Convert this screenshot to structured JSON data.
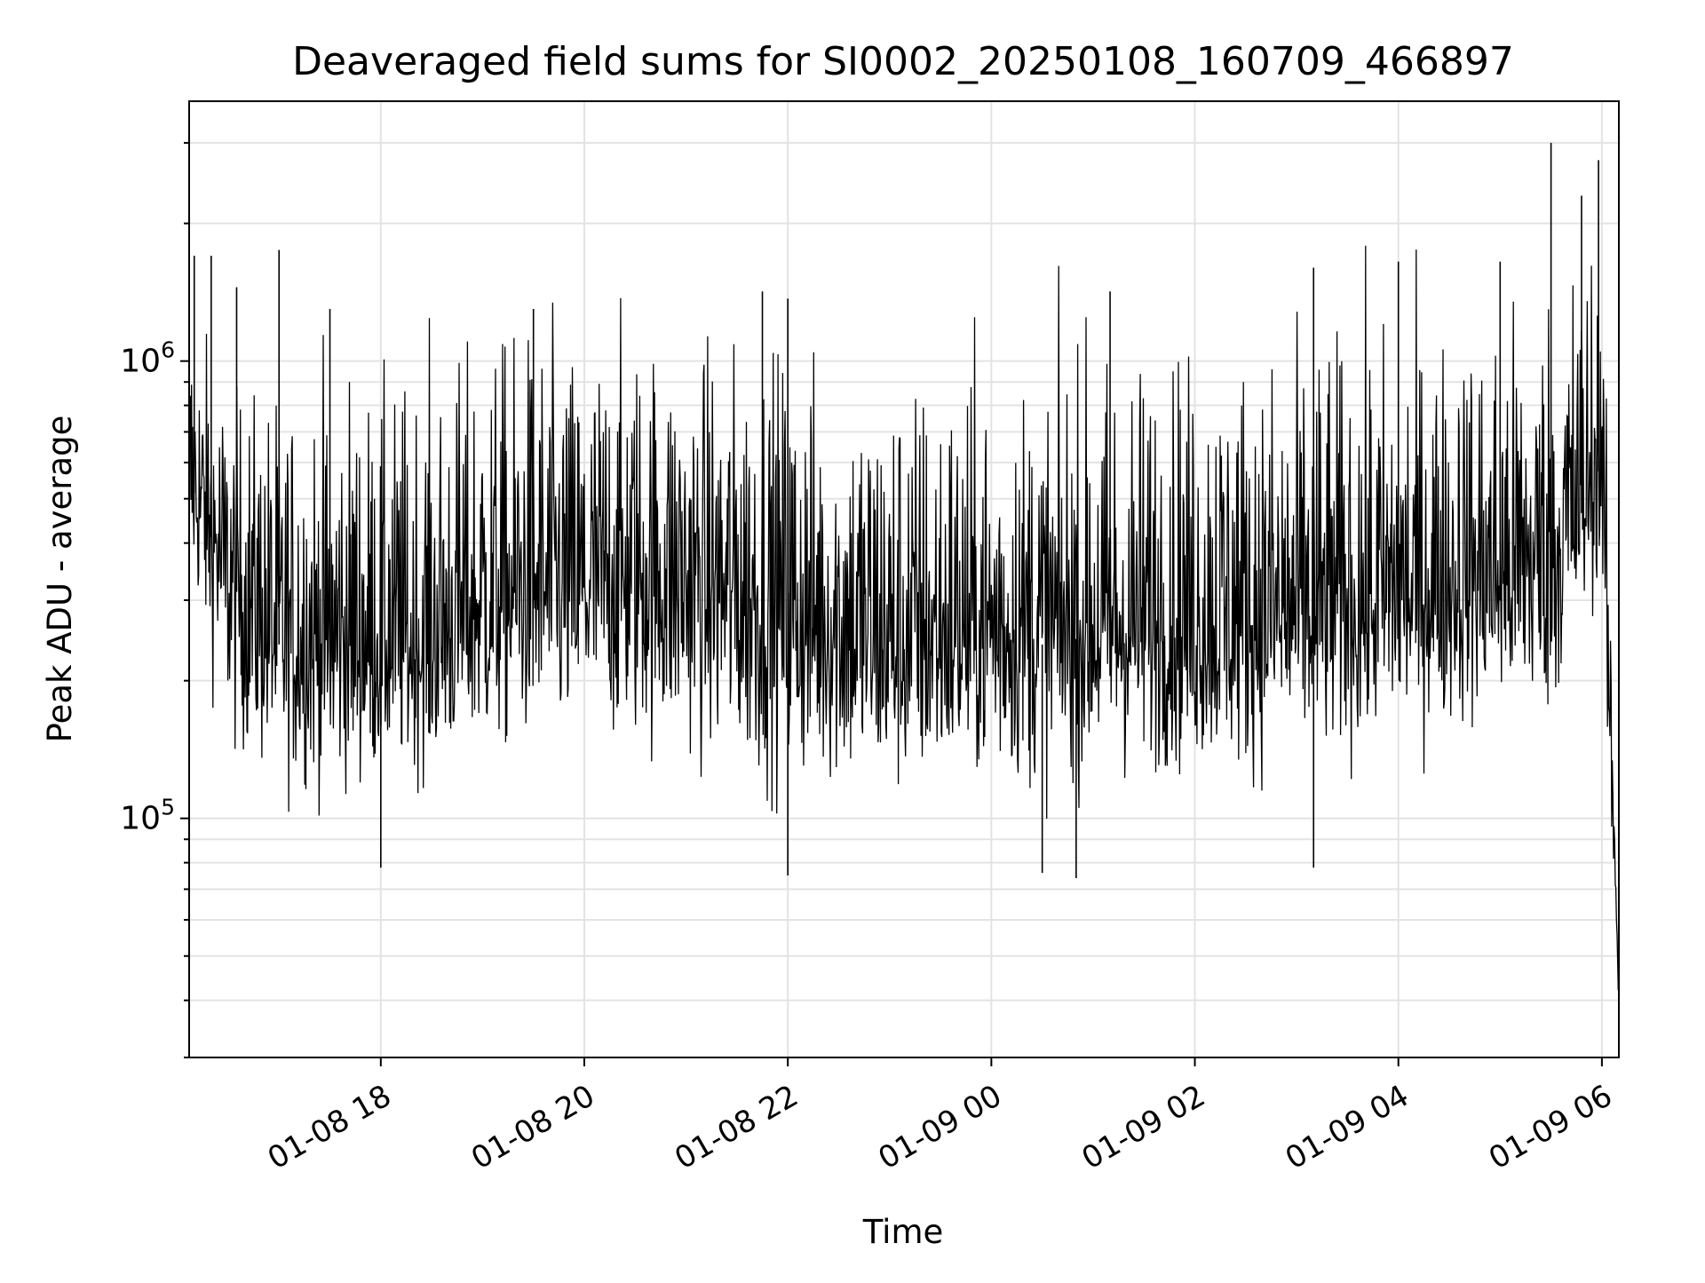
{
  "chart_data": {
    "type": "line",
    "title": "Deaveraged field sums for SI0002_20250108_160709_466897",
    "xlabel": "Time",
    "ylabel": "Peak ADU - average",
    "x_tick_labels": [
      "01-08 18",
      "01-08 20",
      "01-08 22",
      "01-09 00",
      "01-09 02",
      "01-09 04",
      "01-09 06"
    ],
    "x_ticks": [
      "2025-01-08 18:00",
      "2025-01-08 20:00",
      "2025-01-08 22:00",
      "2025-01-09 00:00",
      "2025-01-09 02:00",
      "2025-01-09 04:00",
      "2025-01-09 06:00"
    ],
    "y_tick_labels": [
      {
        "value": 100000,
        "base": "10",
        "exponent": "5"
      },
      {
        "value": 1000000,
        "base": "10",
        "exponent": "6"
      }
    ],
    "xlim": [
      "2025-01-08 16:07",
      "2025-01-09 06:10"
    ],
    "ylim": [
      30000,
      3700000
    ],
    "yscale": "log",
    "grid": true,
    "legend": "none",
    "series": [
      {
        "color": "#000000",
        "x": [
          "2025-01-08 16:07",
          "2025-01-08 16:30",
          "2025-01-08 17:00",
          "2025-01-08 17:30",
          "2025-01-08 18:00",
          "2025-01-08 18:30",
          "2025-01-08 19:00",
          "2025-01-08 19:30",
          "2025-01-08 20:00",
          "2025-01-08 20:30",
          "2025-01-08 21:00",
          "2025-01-08 21:30",
          "2025-01-08 22:00",
          "2025-01-08 22:30",
          "2025-01-08 23:00",
          "2025-01-08 23:30",
          "2025-01-09 00:00",
          "2025-01-09 00:30",
          "2025-01-09 01:00",
          "2025-01-09 01:30",
          "2025-01-09 02:00",
          "2025-01-09 02:30",
          "2025-01-09 03:00",
          "2025-01-09 03:30",
          "2025-01-09 04:00",
          "2025-01-09 04:30",
          "2025-01-09 05:00",
          "2025-01-09 05:30",
          "2025-01-09 05:50",
          "2025-01-09 06:00",
          "2025-01-09 06:05",
          "2025-01-09 06:08",
          "2025-01-09 06:10"
        ],
        "y": [
          550000,
          330000,
          240000,
          230000,
          240000,
          230000,
          290000,
          300000,
          310000,
          330000,
          320000,
          300000,
          280000,
          250000,
          230000,
          240000,
          250000,
          240000,
          250000,
          255000,
          260000,
          265000,
          270000,
          275000,
          300000,
          320000,
          330000,
          350000,
          480000,
          600000,
          150000,
          80000,
          40000
        ],
        "low_envelope": [
          350000,
          150000,
          120000,
          120000,
          125000,
          130000,
          140000,
          150000,
          150000,
          150000,
          140000,
          130000,
          120000,
          120000,
          115000,
          120000,
          125000,
          120000,
          125000,
          130000,
          130000,
          130000,
          135000,
          140000,
          150000,
          160000,
          165000,
          170000,
          280000,
          350000,
          80000,
          55000,
          34000
        ],
        "high_envelope": [
          1300000,
          800000,
          800000,
          900000,
          800000,
          900000,
          1000000,
          1100000,
          1000000,
          1100000,
          1000000,
          1000000,
          1000000,
          900000,
          900000,
          900000,
          900000,
          900000,
          1000000,
          1000000,
          1000000,
          1000000,
          1000000,
          1100000,
          1100000,
          1100000,
          1200000,
          1400000,
          1800000,
          1500000,
          300000,
          120000,
          60000
        ],
        "spikes": [
          {
            "x": "2025-01-08 16:10",
            "y": 1700000
          },
          {
            "x": "2025-01-08 16:20",
            "y": 1700000
          },
          {
            "x": "2025-01-08 16:35",
            "y": 1450000
          },
          {
            "x": "2025-01-08 17:00",
            "y": 1750000
          },
          {
            "x": "2025-01-08 17:30",
            "y": 1300000
          },
          {
            "x": "2025-01-08 19:30",
            "y": 1300000
          },
          {
            "x": "2025-01-08 21:45",
            "y": 1420000
          },
          {
            "x": "2025-01-08 22:00",
            "y": 1370000
          },
          {
            "x": "2025-01-09 01:10",
            "y": 1420000
          },
          {
            "x": "2025-01-09 03:10",
            "y": 1600000
          },
          {
            "x": "2025-01-09 04:00",
            "y": 1650000
          },
          {
            "x": "2025-01-09 05:00",
            "y": 1650000
          },
          {
            "x": "2025-01-09 05:30",
            "y": 3000000
          },
          {
            "x": "2025-01-09 05:48",
            "y": 2300000
          },
          {
            "x": "2025-01-09 05:58",
            "y": 2750000
          },
          {
            "x": "2025-01-08 18:00",
            "y": 78000
          },
          {
            "x": "2025-01-08 22:00",
            "y": 75000
          },
          {
            "x": "2025-01-09 00:30",
            "y": 76000
          },
          {
            "x": "2025-01-09 00:50",
            "y": 74000
          },
          {
            "x": "2025-01-09 03:10",
            "y": 78000
          }
        ]
      }
    ]
  }
}
